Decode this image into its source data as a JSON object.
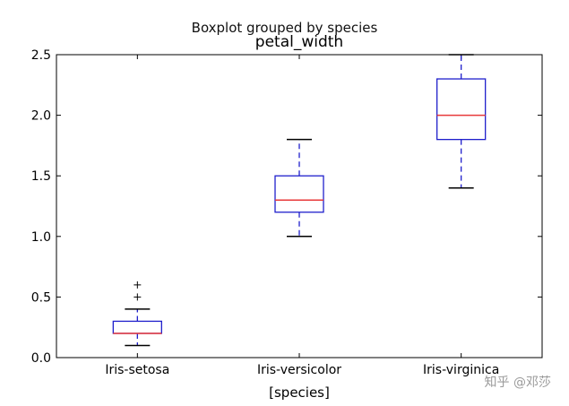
{
  "chart_data": {
    "type": "boxplot",
    "suptitle": "Boxplot grouped by species",
    "title": "petal_width",
    "xlabel": "[species]",
    "ylabel": "",
    "ylim": [
      0,
      2.5
    ],
    "yticks": [
      "0.0",
      "0.5",
      "1.0",
      "1.5",
      "2.0",
      "2.5"
    ],
    "ytick_values": [
      0,
      0.5,
      1.0,
      1.5,
      2.0,
      2.5
    ],
    "grid": false,
    "categories": [
      "Iris-setosa",
      "Iris-versicolor",
      "Iris-virginica"
    ],
    "boxes": [
      {
        "name": "Iris-setosa",
        "whisker_low": 0.1,
        "q1": 0.2,
        "median": 0.2,
        "q3": 0.3,
        "whisker_high": 0.4,
        "fliers": [
          0.5,
          0.6
        ]
      },
      {
        "name": "Iris-versicolor",
        "whisker_low": 1.0,
        "q1": 1.2,
        "median": 1.3,
        "q3": 1.5,
        "whisker_high": 1.8,
        "fliers": []
      },
      {
        "name": "Iris-virginica",
        "whisker_low": 1.4,
        "q1": 1.8,
        "median": 2.0,
        "q3": 2.3,
        "whisker_high": 2.5,
        "fliers": []
      }
    ],
    "colors": {
      "box": "#1f1fcc",
      "median": "#e8393a",
      "whisker": "#1f1fcc",
      "caps": "#000000",
      "flier": "#000000",
      "axis": "#000000"
    }
  },
  "watermark": "知乎 @邓莎"
}
